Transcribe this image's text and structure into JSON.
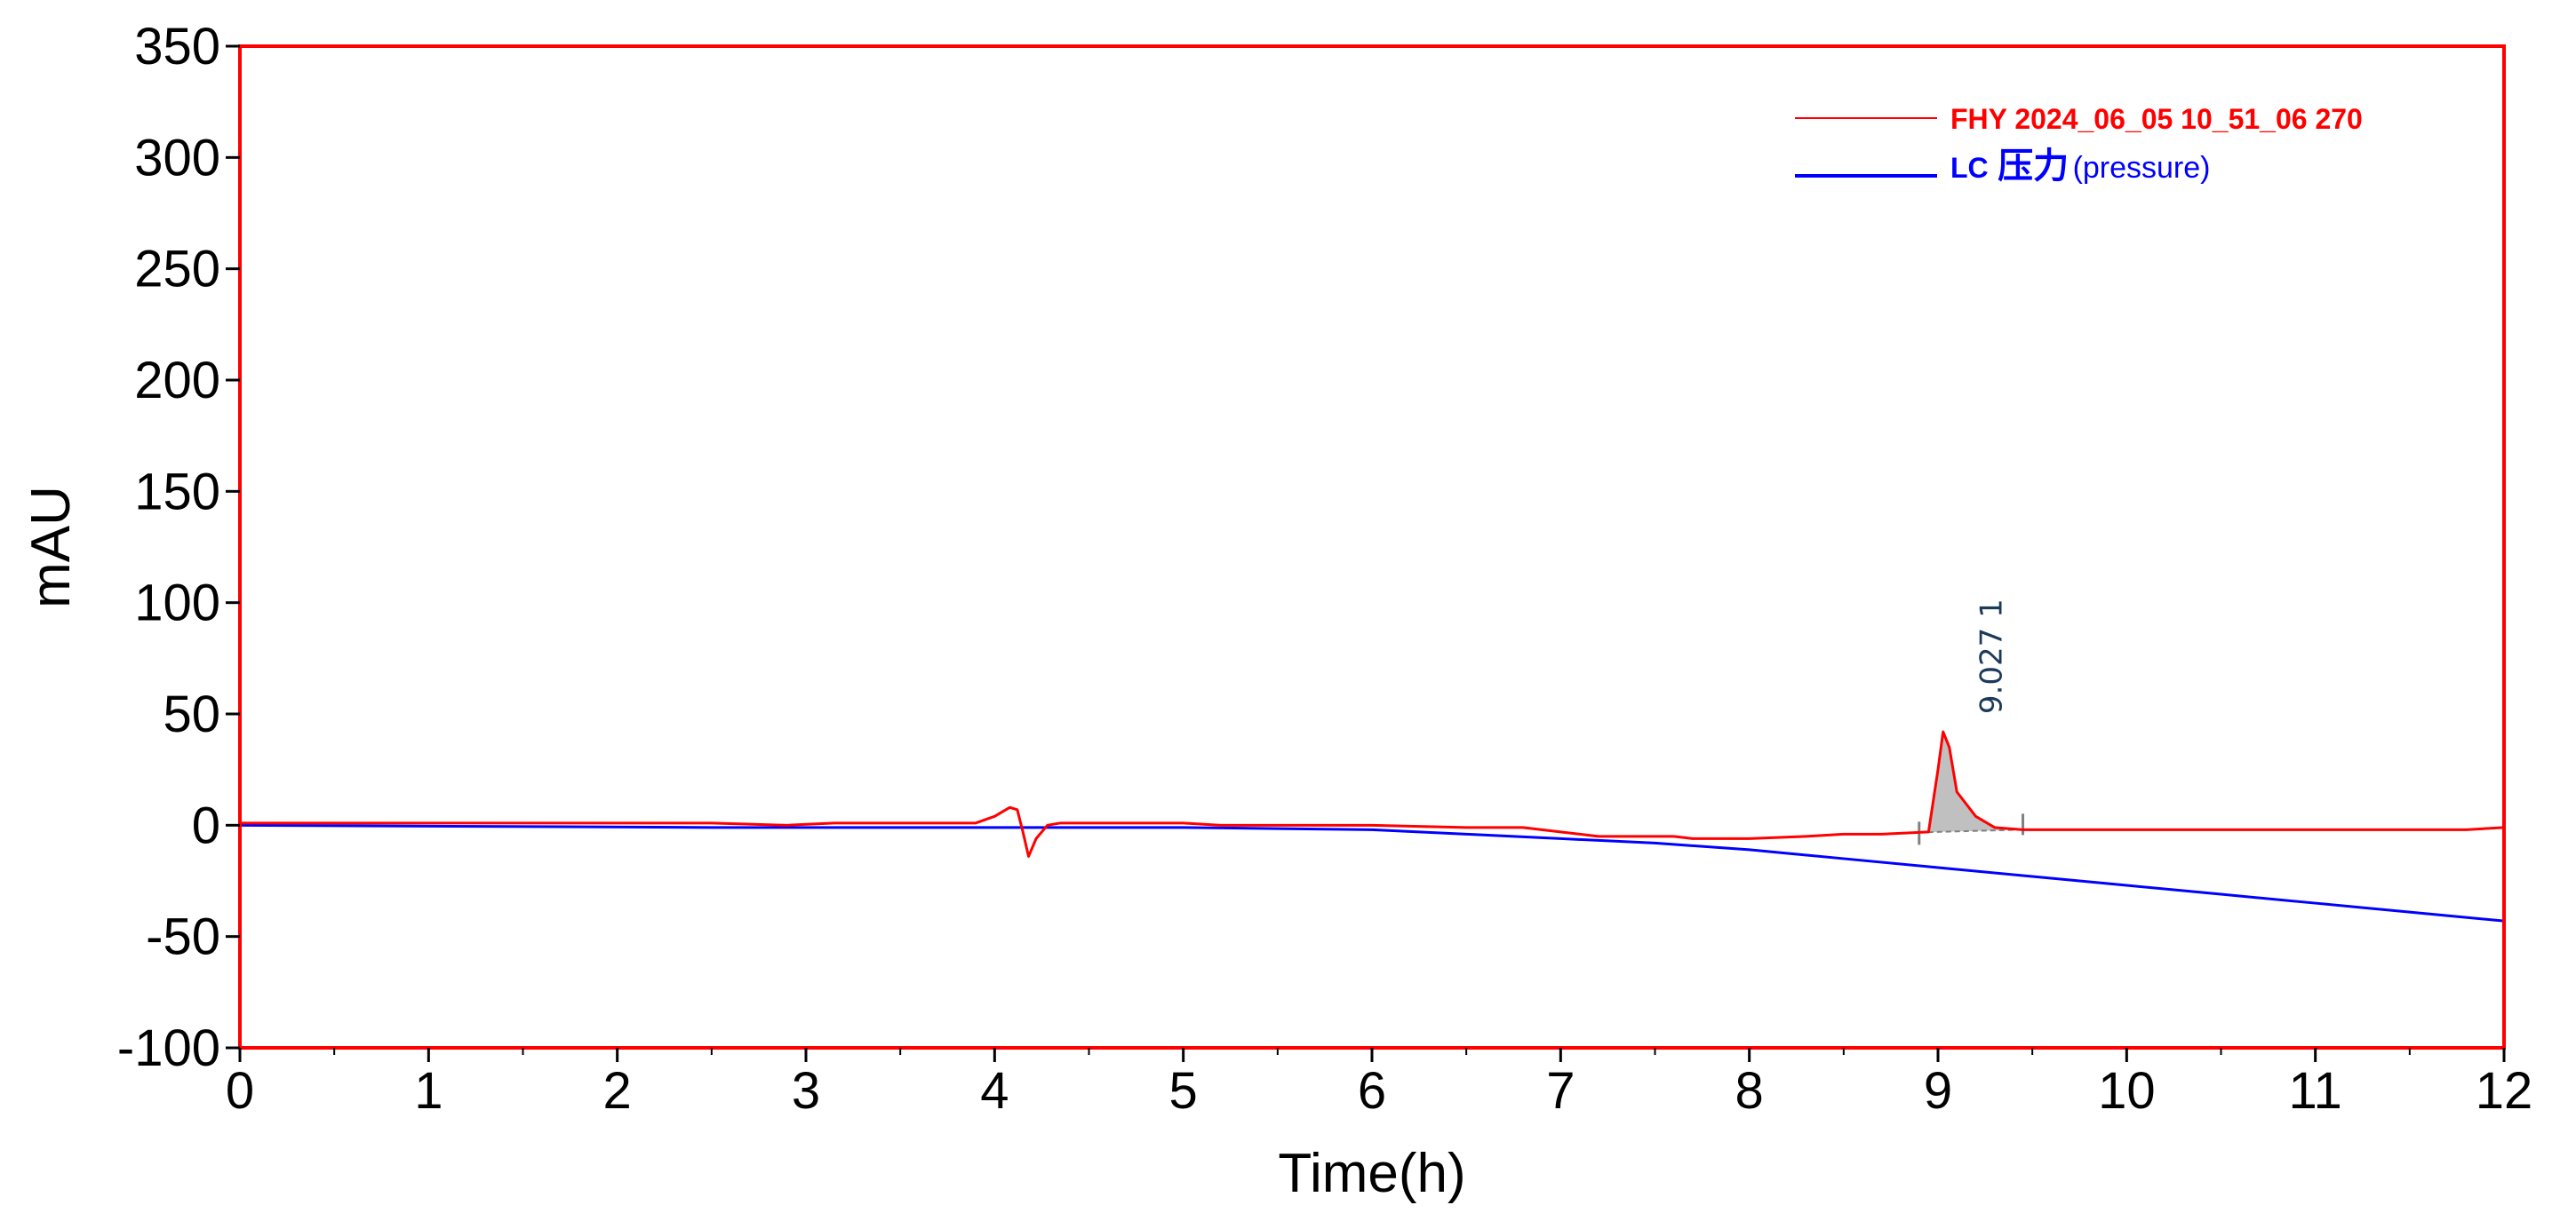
{
  "chart_data": {
    "type": "line",
    "xlabel": "Time(h)",
    "ylabel": "mAU",
    "xlim": [
      0,
      12
    ],
    "ylim": [
      -100,
      350
    ],
    "xticks": [
      "0",
      "1",
      "2",
      "3",
      "4",
      "5",
      "6",
      "7",
      "8",
      "9",
      "10",
      "11",
      "12"
    ],
    "yticks": [
      "-100",
      "-50",
      "0",
      "50",
      "100",
      "150",
      "200",
      "250",
      "300",
      "350"
    ],
    "grid": false,
    "legend_position": "top-right",
    "colors": {
      "frame": "#ff0000",
      "signal": "#ff0000",
      "pressure": "#0000ff",
      "peak_fill": "#c0c0c0"
    },
    "legend": {
      "signal": "FHY 2024_06_05 10_51_06 270",
      "pressure_prefix": "LC",
      "pressure_cjk": "压力",
      "pressure_suffix": "(pressure)"
    },
    "series": [
      {
        "name": "FHY 2024_06_05 10_51_06 270",
        "color": "#ff0000",
        "x": [
          0,
          2.5,
          2.9,
          3.15,
          3.5,
          3.9,
          4.0,
          4.08,
          4.12,
          4.15,
          4.18,
          4.22,
          4.28,
          4.35,
          5.0,
          5.2,
          6.0,
          6.5,
          6.8,
          7.0,
          7.2,
          7.6,
          7.7,
          8.0,
          8.3,
          8.5,
          8.7,
          8.95,
          9.0,
          9.027,
          9.06,
          9.1,
          9.2,
          9.3,
          9.45,
          9.7,
          9.9,
          10.5,
          11.5,
          11.8,
          12.0
        ],
        "y": [
          1,
          1,
          0,
          1,
          1,
          1,
          4,
          8,
          7,
          -3,
          -14,
          -6,
          0,
          1,
          1,
          0,
          0,
          -1,
          -1,
          -3,
          -5,
          -5,
          -6,
          -6,
          -5,
          -4,
          -4,
          -3,
          25,
          42,
          35,
          15,
          4,
          -1,
          -2,
          -2,
          -2,
          -2,
          -2,
          -2,
          -1
        ]
      },
      {
        "name": "LC 压力(pressure)",
        "color": "#0000ff",
        "x": [
          0,
          2.5,
          3.0,
          4.0,
          5.0,
          5.5,
          6.0,
          6.5,
          7.0,
          7.5,
          8.0,
          8.5,
          9.0,
          9.5,
          10.0,
          10.5,
          11.0,
          11.5,
          12.0
        ],
        "y": [
          0,
          -1,
          -1,
          -1,
          -1,
          -1.5,
          -2,
          -4,
          -6,
          -8,
          -11,
          -15,
          -19,
          -23,
          -27,
          -31,
          -35,
          -39,
          -43
        ]
      }
    ],
    "peak": {
      "time": 9.027,
      "apex": 42,
      "start": 8.9,
      "end": 9.45,
      "label": "9.027  1"
    }
  }
}
